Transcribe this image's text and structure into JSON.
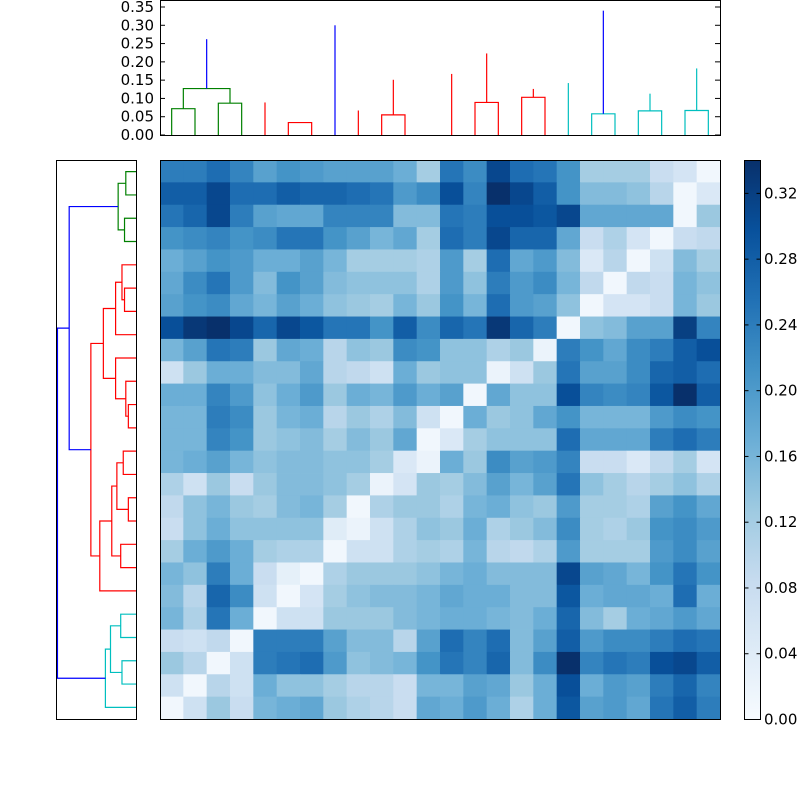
{
  "chart_data": [
    {
      "type": "dendrogram",
      "orientation": "top",
      "yaxis": {
        "ylim": [
          0,
          0.35
        ],
        "tick_labels": [
          "0.00",
          "0.05",
          "0.10",
          "0.15",
          "0.20",
          "0.25",
          "0.30",
          "0.35"
        ]
      },
      "colors": {
        "green": "#008000",
        "red": "#ff0000",
        "cyan": "#00bfbf",
        "blue": "#0000ff"
      },
      "merges": [
        {
          "left": 0,
          "right": 1,
          "height": 0.072,
          "color": "green"
        },
        {
          "left": 2,
          "right": 3,
          "height": 0.087,
          "color": "green"
        },
        {
          "left": 24,
          "right": 25,
          "height": 0.127,
          "color": "green"
        },
        {
          "left": 5,
          "right": 6,
          "height": 0.034,
          "color": "red"
        },
        {
          "left": 4,
          "right": 28,
          "height": 0.089,
          "color": "red"
        },
        {
          "left": 9,
          "right": 10,
          "height": 0.055,
          "color": "red"
        },
        {
          "left": 8,
          "right": 30,
          "height": 0.067,
          "color": "red"
        },
        {
          "left": 31,
          "right": 11,
          "height": 0.139,
          "color": "red"
        },
        {
          "left": 29,
          "right": 32,
          "height": 0.151,
          "color": "red"
        },
        {
          "left": 13,
          "right": 14,
          "height": 0.089,
          "color": "red"
        },
        {
          "left": 15,
          "right": 16,
          "height": 0.103,
          "color": "red"
        },
        {
          "left": 34,
          "right": 35,
          "height": 0.126,
          "color": "red"
        },
        {
          "left": 12,
          "right": 36,
          "height": 0.167,
          "color": "red"
        },
        {
          "left": 33,
          "right": 37,
          "height": 0.223,
          "color": "red"
        },
        {
          "left": 26,
          "right": 38,
          "height": 0.262,
          "color": "blue"
        },
        {
          "left": 18,
          "right": 19,
          "height": 0.058,
          "color": "cyan"
        },
        {
          "left": 20,
          "right": 21,
          "height": 0.066,
          "color": "cyan"
        },
        {
          "left": 40,
          "right": 41,
          "height": 0.113,
          "color": "cyan"
        },
        {
          "left": 22,
          "right": 23,
          "height": 0.067,
          "color": "cyan"
        },
        {
          "left": 17,
          "right": 43,
          "height": 0.142,
          "color": "cyan"
        },
        {
          "left": 42,
          "right": 44,
          "height": 0.182,
          "color": "cyan"
        },
        {
          "left": 7,
          "right": 45,
          "height": 0.3,
          "color": "blue"
        },
        {
          "left": 39,
          "right": 46,
          "height": 0.34,
          "color": "blue"
        }
      ],
      "n_leaves": 24
    },
    {
      "type": "dendrogram",
      "orientation": "left",
      "colors": {
        "green": "#008000",
        "red": "#ff0000",
        "cyan": "#00bfbf",
        "blue": "#0000ff"
      },
      "merges": [
        {
          "left": 0,
          "right": 1,
          "height": 0.04,
          "color": "green"
        },
        {
          "left": 2,
          "right": 3,
          "height": 0.045,
          "color": "green"
        },
        {
          "left": 24,
          "right": 25,
          "height": 0.07,
          "color": "green"
        },
        {
          "left": 5,
          "right": 6,
          "height": 0.045,
          "color": "red"
        },
        {
          "left": 4,
          "right": 27,
          "height": 0.055,
          "color": "red"
        },
        {
          "left": 7,
          "right": 28,
          "height": 0.08,
          "color": "red"
        },
        {
          "left": 10,
          "right": 11,
          "height": 0.03,
          "color": "red"
        },
        {
          "left": 9,
          "right": 30,
          "height": 0.04,
          "color": "red"
        },
        {
          "left": 8,
          "right": 31,
          "height": 0.08,
          "color": "red"
        },
        {
          "left": 29,
          "right": 32,
          "height": 0.128,
          "color": "red"
        },
        {
          "left": 12,
          "right": 13,
          "height": 0.05,
          "color": "red"
        },
        {
          "left": 14,
          "right": 15,
          "height": 0.03,
          "color": "red"
        },
        {
          "left": 34,
          "right": 35,
          "height": 0.075,
          "color": "red"
        },
        {
          "left": 16,
          "right": 17,
          "height": 0.06,
          "color": "red"
        },
        {
          "left": 36,
          "right": 37,
          "height": 0.095,
          "color": "red"
        },
        {
          "left": 38,
          "right": 18,
          "height": 0.142,
          "color": "red"
        },
        {
          "left": 33,
          "right": 39,
          "height": 0.177,
          "color": "red"
        },
        {
          "left": 26,
          "right": 40,
          "height": 0.262,
          "color": "blue"
        },
        {
          "left": 19,
          "right": 20,
          "height": 0.06,
          "color": "cyan"
        },
        {
          "left": 21,
          "right": 22,
          "height": 0.055,
          "color": "cyan"
        },
        {
          "left": 42,
          "right": 43,
          "height": 0.1,
          "color": "cyan"
        },
        {
          "left": 23,
          "right": 44,
          "height": 0.12,
          "color": "cyan"
        },
        {
          "left": 41,
          "right": 45,
          "height": 0.308,
          "color": "blue"
        }
      ],
      "n_leaves": 24
    },
    {
      "type": "heatmap",
      "rows": 24,
      "cols": 24,
      "colormap": "Blues",
      "colorbar": {
        "vmin": 0,
        "vmax": 0.34,
        "tick_labels": [
          "0.00",
          "0.04",
          "0.08",
          "0.12",
          "0.16",
          "0.20",
          "0.24",
          "0.28",
          "0.32"
        ]
      },
      "values": [
        [
          0.24,
          0.24,
          0.26,
          0.23,
          0.19,
          0.21,
          0.2,
          0.19,
          0.19,
          0.19,
          0.17,
          0.12,
          0.25,
          0.22,
          0.31,
          0.26,
          0.25,
          0.21,
          0.12,
          0.12,
          0.12,
          0.08,
          0.06,
          0.01
        ],
        [
          0.28,
          0.28,
          0.31,
          0.26,
          0.26,
          0.28,
          0.27,
          0.27,
          0.26,
          0.25,
          0.2,
          0.22,
          0.3,
          0.23,
          0.34,
          0.31,
          0.28,
          0.21,
          0.15,
          0.15,
          0.14,
          0.1,
          0.01,
          0.05
        ],
        [
          0.25,
          0.27,
          0.31,
          0.24,
          0.19,
          0.18,
          0.18,
          0.23,
          0.23,
          0.23,
          0.15,
          0.15,
          0.25,
          0.24,
          0.3,
          0.3,
          0.29,
          0.31,
          0.18,
          0.18,
          0.18,
          0.18,
          0.01,
          0.13
        ],
        [
          0.21,
          0.22,
          0.23,
          0.21,
          0.22,
          0.25,
          0.25,
          0.21,
          0.19,
          0.16,
          0.18,
          0.12,
          0.26,
          0.24,
          0.31,
          0.27,
          0.27,
          0.18,
          0.08,
          0.11,
          0.06,
          0.01,
          0.08,
          0.09
        ],
        [
          0.17,
          0.19,
          0.21,
          0.2,
          0.17,
          0.17,
          0.19,
          0.16,
          0.12,
          0.12,
          0.12,
          0.11,
          0.2,
          0.12,
          0.26,
          0.18,
          0.2,
          0.15,
          0.05,
          0.1,
          0.01,
          0.07,
          0.15,
          0.12
        ],
        [
          0.18,
          0.22,
          0.25,
          0.2,
          0.15,
          0.21,
          0.19,
          0.15,
          0.14,
          0.14,
          0.14,
          0.11,
          0.2,
          0.14,
          0.24,
          0.2,
          0.22,
          0.16,
          0.09,
          0.01,
          0.09,
          0.08,
          0.16,
          0.14
        ],
        [
          0.19,
          0.21,
          0.22,
          0.18,
          0.16,
          0.19,
          0.17,
          0.14,
          0.13,
          0.12,
          0.16,
          0.13,
          0.21,
          0.16,
          0.26,
          0.2,
          0.19,
          0.14,
          0.01,
          0.06,
          0.06,
          0.08,
          0.16,
          0.13
        ],
        [
          0.3,
          0.33,
          0.34,
          0.31,
          0.27,
          0.31,
          0.29,
          0.25,
          0.25,
          0.21,
          0.28,
          0.22,
          0.27,
          0.25,
          0.33,
          0.27,
          0.24,
          0.01,
          0.14,
          0.15,
          0.19,
          0.19,
          0.32,
          0.23
        ],
        [
          0.16,
          0.19,
          0.25,
          0.24,
          0.13,
          0.18,
          0.17,
          0.1,
          0.14,
          0.13,
          0.22,
          0.21,
          0.14,
          0.14,
          0.11,
          0.13,
          0.02,
          0.24,
          0.21,
          0.18,
          0.22,
          0.24,
          0.28,
          0.3
        ],
        [
          0.07,
          0.13,
          0.17,
          0.17,
          0.15,
          0.15,
          0.18,
          0.1,
          0.09,
          0.07,
          0.17,
          0.13,
          0.14,
          0.14,
          0.02,
          0.07,
          0.13,
          0.25,
          0.19,
          0.19,
          0.22,
          0.27,
          0.28,
          0.26
        ],
        [
          0.17,
          0.17,
          0.23,
          0.2,
          0.14,
          0.17,
          0.2,
          0.13,
          0.17,
          0.16,
          0.2,
          0.17,
          0.19,
          0.01,
          0.18,
          0.14,
          0.14,
          0.3,
          0.23,
          0.22,
          0.23,
          0.29,
          0.34,
          0.28
        ],
        [
          0.16,
          0.16,
          0.24,
          0.22,
          0.13,
          0.16,
          0.17,
          0.1,
          0.13,
          0.11,
          0.15,
          0.07,
          0.01,
          0.17,
          0.13,
          0.14,
          0.18,
          0.21,
          0.16,
          0.16,
          0.16,
          0.2,
          0.22,
          0.21
        ],
        [
          0.16,
          0.16,
          0.23,
          0.21,
          0.13,
          0.14,
          0.15,
          0.12,
          0.15,
          0.13,
          0.18,
          0.01,
          0.05,
          0.12,
          0.14,
          0.14,
          0.14,
          0.26,
          0.18,
          0.18,
          0.18,
          0.24,
          0.26,
          0.24
        ],
        [
          0.16,
          0.17,
          0.19,
          0.16,
          0.14,
          0.15,
          0.15,
          0.14,
          0.14,
          0.12,
          0.05,
          0.02,
          0.17,
          0.13,
          0.22,
          0.19,
          0.2,
          0.23,
          0.08,
          0.08,
          0.05,
          0.09,
          0.12,
          0.06
        ],
        [
          0.11,
          0.07,
          0.13,
          0.08,
          0.13,
          0.15,
          0.15,
          0.14,
          0.12,
          0.02,
          0.06,
          0.13,
          0.12,
          0.15,
          0.19,
          0.16,
          0.19,
          0.25,
          0.14,
          0.12,
          0.1,
          0.12,
          0.14,
          0.11
        ],
        [
          0.09,
          0.14,
          0.16,
          0.13,
          0.12,
          0.15,
          0.16,
          0.12,
          0.01,
          0.11,
          0.13,
          0.13,
          0.11,
          0.16,
          0.17,
          0.14,
          0.13,
          0.2,
          0.12,
          0.12,
          0.11,
          0.19,
          0.21,
          0.18
        ],
        [
          0.08,
          0.14,
          0.17,
          0.14,
          0.14,
          0.14,
          0.14,
          0.04,
          0.02,
          0.07,
          0.11,
          0.14,
          0.13,
          0.17,
          0.11,
          0.13,
          0.15,
          0.22,
          0.12,
          0.11,
          0.13,
          0.21,
          0.22,
          0.2
        ],
        [
          0.12,
          0.17,
          0.2,
          0.17,
          0.12,
          0.11,
          0.11,
          0.01,
          0.07,
          0.07,
          0.11,
          0.12,
          0.11,
          0.16,
          0.1,
          0.09,
          0.11,
          0.2,
          0.12,
          0.12,
          0.12,
          0.2,
          0.22,
          0.19
        ],
        [
          0.16,
          0.14,
          0.24,
          0.17,
          0.08,
          0.03,
          0.01,
          0.11,
          0.13,
          0.13,
          0.13,
          0.14,
          0.16,
          0.17,
          0.15,
          0.15,
          0.15,
          0.31,
          0.19,
          0.18,
          0.16,
          0.21,
          0.25,
          0.21
        ],
        [
          0.15,
          0.1,
          0.27,
          0.22,
          0.07,
          0.01,
          0.06,
          0.12,
          0.14,
          0.15,
          0.15,
          0.16,
          0.18,
          0.17,
          0.17,
          0.15,
          0.15,
          0.29,
          0.17,
          0.18,
          0.18,
          0.17,
          0.26,
          0.17
        ],
        [
          0.16,
          0.11,
          0.25,
          0.17,
          0.01,
          0.07,
          0.07,
          0.13,
          0.13,
          0.13,
          0.15,
          0.16,
          0.17,
          0.17,
          0.16,
          0.15,
          0.17,
          0.27,
          0.15,
          0.12,
          0.17,
          0.18,
          0.2,
          0.18
        ],
        [
          0.08,
          0.07,
          0.09,
          0.01,
          0.24,
          0.24,
          0.24,
          0.19,
          0.15,
          0.15,
          0.1,
          0.19,
          0.26,
          0.23,
          0.26,
          0.15,
          0.19,
          0.28,
          0.2,
          0.22,
          0.22,
          0.24,
          0.26,
          0.25
        ],
        [
          0.13,
          0.1,
          0.01,
          0.07,
          0.24,
          0.25,
          0.26,
          0.2,
          0.14,
          0.15,
          0.16,
          0.21,
          0.25,
          0.23,
          0.27,
          0.15,
          0.22,
          0.34,
          0.23,
          0.25,
          0.24,
          0.3,
          0.31,
          0.28
        ],
        [
          0.07,
          0.01,
          0.1,
          0.07,
          0.17,
          0.14,
          0.14,
          0.12,
          0.1,
          0.1,
          0.08,
          0.16,
          0.16,
          0.19,
          0.18,
          0.13,
          0.17,
          0.3,
          0.17,
          0.2,
          0.19,
          0.24,
          0.27,
          0.23
        ],
        [
          0.01,
          0.07,
          0.13,
          0.08,
          0.16,
          0.17,
          0.18,
          0.13,
          0.11,
          0.1,
          0.08,
          0.18,
          0.17,
          0.2,
          0.17,
          0.11,
          0.17,
          0.29,
          0.19,
          0.2,
          0.18,
          0.25,
          0.28,
          0.24
        ]
      ]
    }
  ]
}
